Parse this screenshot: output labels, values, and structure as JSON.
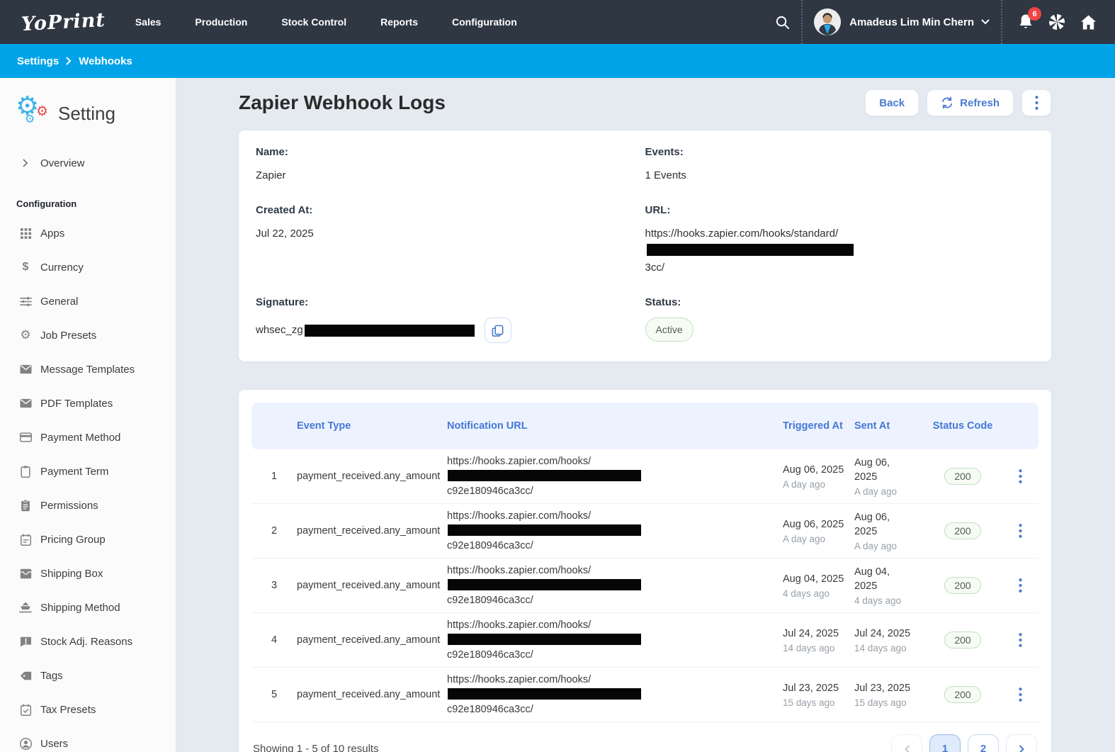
{
  "navbar": {
    "logo_text": "YoPrint",
    "items": [
      {
        "label": "Sales"
      },
      {
        "label": "Production"
      },
      {
        "label": "Stock Control"
      },
      {
        "label": "Reports"
      },
      {
        "label": "Configuration"
      }
    ],
    "user_name": "Amadeus Lim Min Chern",
    "notification_count": "6"
  },
  "breadcrumb": {
    "items": [
      "Settings",
      "Webhooks"
    ]
  },
  "sidebar": {
    "title": "Setting",
    "overview_label": "Overview",
    "section_label": "Configuration",
    "items": [
      {
        "icon": "apps-icon",
        "label": "Apps"
      },
      {
        "icon": "currency-icon",
        "label": "Currency"
      },
      {
        "icon": "general-icon",
        "label": "General"
      },
      {
        "icon": "job-presets-icon",
        "label": "Job Presets"
      },
      {
        "icon": "message-templates-icon",
        "label": "Message Templates"
      },
      {
        "icon": "pdf-templates-icon",
        "label": "PDF Templates"
      },
      {
        "icon": "payment-method-icon",
        "label": "Payment Method"
      },
      {
        "icon": "payment-term-icon",
        "label": "Payment Term"
      },
      {
        "icon": "permissions-icon",
        "label": "Permissions"
      },
      {
        "icon": "pricing-group-icon",
        "label": "Pricing Group"
      },
      {
        "icon": "shipping-box-icon",
        "label": "Shipping Box"
      },
      {
        "icon": "shipping-method-icon",
        "label": "Shipping Method"
      },
      {
        "icon": "stock-adj-reasons-icon",
        "label": "Stock Adj. Reasons"
      },
      {
        "icon": "tags-icon",
        "label": "Tags"
      },
      {
        "icon": "tax-presets-icon",
        "label": "Tax Presets"
      },
      {
        "icon": "users-icon",
        "label": "Users"
      }
    ]
  },
  "page": {
    "title": "Zapier Webhook Logs",
    "back_label": "Back",
    "refresh_label": "Refresh"
  },
  "details": {
    "name_label": "Name:",
    "name_value": "Zapier",
    "events_label": "Events:",
    "events_value": "1 Events",
    "created_label": "Created At:",
    "created_value": "Jul 22, 2025",
    "url_label": "URL:",
    "url_prefix": "https://hooks.zapier.com/hooks/standard/",
    "url_suffix": "3cc/",
    "signature_label": "Signature:",
    "signature_value": "whsec_zg",
    "status_label": "Status:",
    "status_value": "Active"
  },
  "table": {
    "headers": {
      "event_type": "Event Type",
      "notification_url": "Notification URL",
      "triggered_at": "Triggered At",
      "sent_at": "Sent At",
      "status_code": "Status Code"
    },
    "rows": [
      {
        "index": "1",
        "event_type": "payment_received.any_amount",
        "url_prefix": "https://hooks.zapier.com/hooks/",
        "url_suffix": "c92e180946ca3cc/",
        "triggered_date": "Aug 06, 2025",
        "triggered_rel": "A day ago",
        "sent_date": "Aug 06, 2025",
        "sent_rel": "A day ago",
        "status_code": "200"
      },
      {
        "index": "2",
        "event_type": "payment_received.any_amount",
        "url_prefix": "https://hooks.zapier.com/hooks/",
        "url_suffix": "c92e180946ca3cc/",
        "triggered_date": "Aug 06, 2025",
        "triggered_rel": "A day ago",
        "sent_date": "Aug 06, 2025",
        "sent_rel": "A day ago",
        "status_code": "200"
      },
      {
        "index": "3",
        "event_type": "payment_received.any_amount",
        "url_prefix": "https://hooks.zapier.com/hooks/",
        "url_suffix": "c92e180946ca3cc/",
        "triggered_date": "Aug 04, 2025",
        "triggered_rel": "4 days ago",
        "sent_date": "Aug 04, 2025",
        "sent_rel": "4 days ago",
        "status_code": "200"
      },
      {
        "index": "4",
        "event_type": "payment_received.any_amount",
        "url_prefix": "https://hooks.zapier.com/hooks/",
        "url_suffix": "c92e180946ca3cc/",
        "triggered_date": "Jul 24, 2025",
        "triggered_rel": "14 days ago",
        "sent_date": "Jul 24, 2025",
        "sent_rel": "14 days ago",
        "status_code": "200"
      },
      {
        "index": "5",
        "event_type": "payment_received.any_amount",
        "url_prefix": "https://hooks.zapier.com/hooks/",
        "url_suffix": "c92e180946ca3cc/",
        "triggered_date": "Jul 23, 2025",
        "triggered_rel": "15 days ago",
        "sent_date": "Jul 23, 2025",
        "sent_rel": "15 days ago",
        "status_code": "200"
      }
    ],
    "footer_text": "Showing 1 - 5 of 10 results"
  },
  "pagination": {
    "pages": [
      "1",
      "2"
    ],
    "active_page": "1"
  },
  "colors": {
    "brand_cyan": "#00a3e8",
    "navbar_dark": "#2f3743",
    "accent_blue": "#4a7bd0",
    "success_green_border": "#c2e0bd",
    "badge_red": "#ef4545"
  }
}
